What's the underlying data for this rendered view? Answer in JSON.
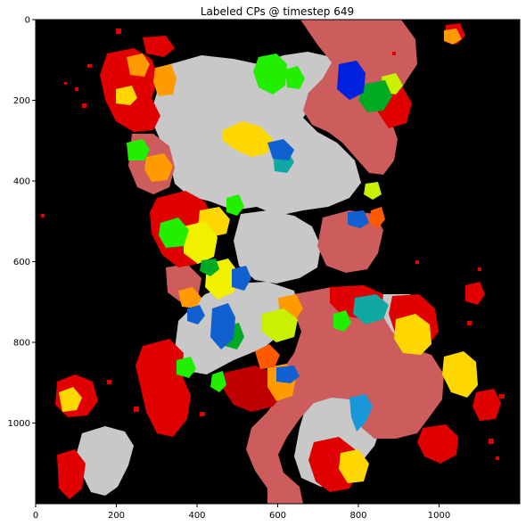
{
  "chart_data": {
    "type": "heatmap",
    "title": "Labeled CPs @ timestep 649",
    "xlabel": "",
    "ylabel": "",
    "xlim": [
      0,
      1200
    ],
    "ylim": [
      1200,
      0
    ],
    "x_ticks": [
      "0",
      "200",
      "400",
      "600",
      "800",
      "1000"
    ],
    "y_ticks": [
      "0",
      "200",
      "400",
      "600",
      "800",
      "1000"
    ],
    "grid": false,
    "colors": {
      "background": "#000000",
      "large_region": "#c8c8c8",
      "rose": "#cd5c5c",
      "red": "#e00000",
      "dark_red": "#c00000",
      "orange": "#ff9a00",
      "orange_red": "#ff5a00",
      "yellow": "#ffd700",
      "light_yellow": "#f0f000",
      "yellow_green": "#c8f000",
      "green": "#22ee00",
      "dark_green": "#00aa22",
      "teal": "#10a8a0",
      "blue": "#1060d0",
      "sky_blue": "#1898d8",
      "deep_blue": "#0020e0"
    }
  }
}
